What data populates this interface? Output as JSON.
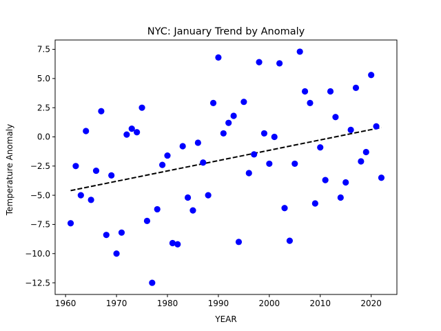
{
  "chart_data": {
    "type": "scatter",
    "title": "NYC: January Trend by Anomaly",
    "xlabel": "YEAR",
    "ylabel": "Temperature Anomaly",
    "xlim": [
      1957.95,
      2025.05
    ],
    "ylim": [
      -13.5,
      8.3
    ],
    "xticks": [
      1960,
      1970,
      1980,
      1990,
      2000,
      2010,
      2020
    ],
    "xtick_labels": [
      "1960",
      "1970",
      "1980",
      "1990",
      "2000",
      "2010",
      "2020"
    ],
    "yticks": [
      7.5,
      5.0,
      2.5,
      0.0,
      -2.5,
      -5.0,
      -7.5,
      -10.0,
      -12.5
    ],
    "ytick_labels": [
      "7.5",
      "5.0",
      "2.5",
      "0.0",
      "−2.5",
      "−5.0",
      "−7.5",
      "−10.0",
      "−12.5"
    ],
    "grid": false,
    "point_color": "#0000ff",
    "trend_color": "#000000",
    "series": [
      {
        "type": "scatter",
        "x": [
          1961,
          1962,
          1963,
          1964,
          1965,
          1966,
          1967,
          1968,
          1969,
          1970,
          1971,
          1972,
          1973,
          1974,
          1975,
          1976,
          1977,
          1978,
          1979,
          1980,
          1981,
          1982,
          1983,
          1984,
          1985,
          1986,
          1987,
          1988,
          1989,
          1990,
          1991,
          1992,
          1993,
          1994,
          1995,
          1996,
          1997,
          1998,
          1999,
          2000,
          2001,
          2002,
          2003,
          2004,
          2005,
          2006,
          2007,
          2008,
          2009,
          2010,
          2011,
          2012,
          2013,
          2014,
          2015,
          2016,
          2017,
          2018,
          2019,
          2020,
          2021,
          2022
        ],
        "y": [
          -7.4,
          -2.5,
          -5.0,
          0.5,
          -5.4,
          -2.9,
          2.2,
          -8.4,
          -3.3,
          -10.0,
          -8.2,
          0.2,
          0.7,
          0.4,
          2.5,
          -7.2,
          -12.5,
          -6.2,
          -2.4,
          -1.6,
          -9.1,
          -9.2,
          -0.8,
          -5.2,
          -6.3,
          -0.5,
          -2.2,
          -5.0,
          2.9,
          6.8,
          0.3,
          1.2,
          1.8,
          -9.0,
          3.0,
          -3.1,
          -1.5,
          6.4,
          0.3,
          -2.3,
          0.0,
          6.3,
          -6.1,
          -8.9,
          -2.3,
          7.3,
          3.9,
          2.9,
          -5.7,
          -0.9,
          -3.7,
          3.9,
          1.7,
          -5.2,
          -3.9,
          0.6,
          4.2,
          -2.1,
          -1.3,
          5.3,
          0.9,
          -3.5
        ]
      },
      {
        "type": "line",
        "style": "dashed",
        "x": [
          1961,
          2022
        ],
        "y": [
          -4.6,
          0.8
        ]
      }
    ]
  }
}
